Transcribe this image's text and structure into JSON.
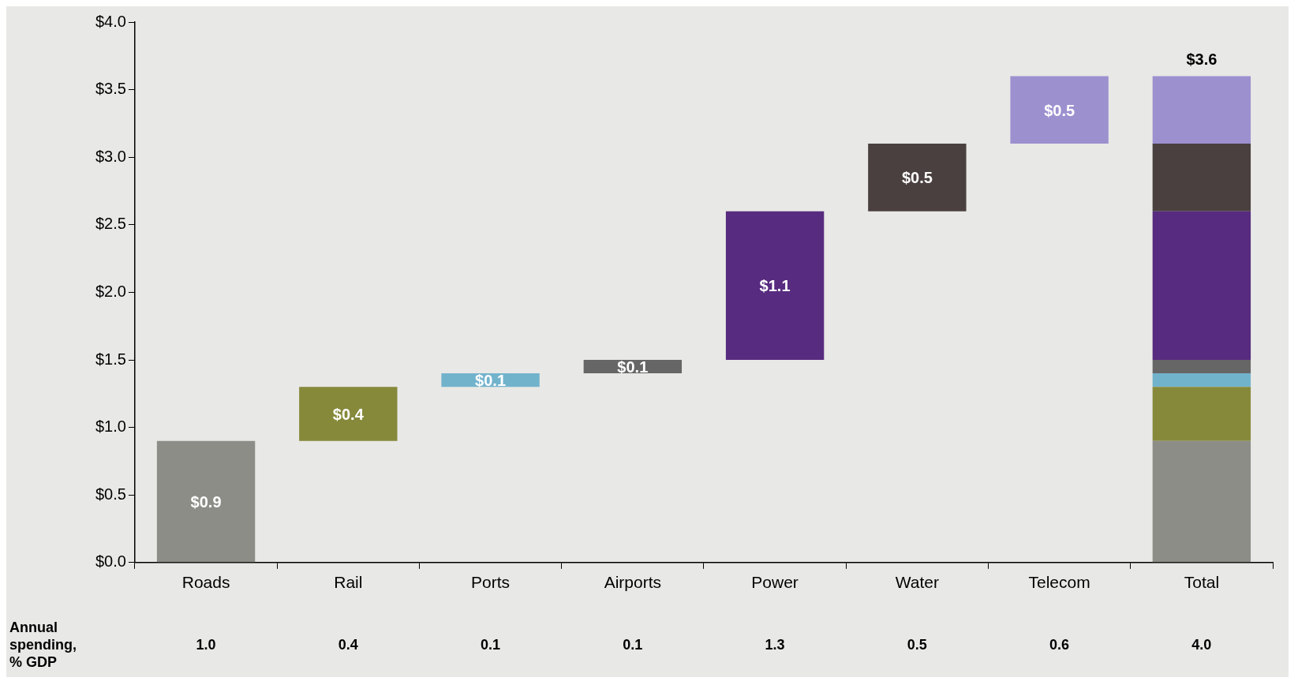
{
  "chart_data": {
    "type": "bar",
    "stacked": true,
    "categories": [
      "Roads",
      "Rail",
      "Ports",
      "Airports",
      "Power",
      "Water",
      "Telecom",
      "Total"
    ],
    "series": [
      {
        "color": "#8c8d87",
        "values": [
          0.9,
          null,
          null,
          null,
          null,
          null,
          null,
          0.9
        ],
        "base": [
          0,
          null,
          null,
          null,
          null,
          null,
          null,
          null
        ],
        "value_labels": [
          "$0.9",
          null,
          null,
          null,
          null,
          null,
          null,
          null
        ]
      },
      {
        "color": "#86893a",
        "values": [
          null,
          0.4,
          null,
          null,
          null,
          null,
          null,
          0.4
        ],
        "base": [
          null,
          0.9,
          null,
          null,
          null,
          null,
          null,
          null
        ],
        "value_labels": [
          null,
          "$0.4",
          null,
          null,
          null,
          null,
          null,
          null
        ]
      },
      {
        "color": "#72b3cc",
        "values": [
          null,
          null,
          0.1,
          null,
          null,
          null,
          null,
          0.1
        ],
        "base": [
          null,
          null,
          1.3,
          null,
          null,
          null,
          null,
          null
        ],
        "value_labels": [
          null,
          null,
          "$0.1",
          null,
          null,
          null,
          null,
          null
        ]
      },
      {
        "color": "#666666",
        "values": [
          null,
          null,
          null,
          0.1,
          null,
          null,
          null,
          0.1
        ],
        "base": [
          null,
          null,
          null,
          1.4,
          null,
          null,
          null,
          null
        ],
        "value_labels": [
          null,
          null,
          null,
          "$0.1",
          null,
          null,
          null,
          null
        ]
      },
      {
        "color": "#572b7f",
        "values": [
          null,
          null,
          null,
          null,
          1.1,
          null,
          null,
          1.1
        ],
        "base": [
          null,
          null,
          null,
          null,
          1.5,
          null,
          null,
          null
        ],
        "value_labels": [
          null,
          null,
          null,
          null,
          "$1.1",
          null,
          null,
          null
        ]
      },
      {
        "color": "#4a403f",
        "values": [
          null,
          null,
          null,
          null,
          null,
          0.5,
          null,
          0.5
        ],
        "base": [
          null,
          null,
          null,
          null,
          null,
          2.6,
          null,
          null
        ],
        "value_labels": [
          null,
          null,
          null,
          null,
          null,
          "$0.5",
          null,
          null
        ]
      },
      {
        "color": "#9d90cf",
        "values": [
          null,
          null,
          null,
          null,
          null,
          null,
          0.5,
          0.5
        ],
        "base": [
          null,
          null,
          null,
          null,
          null,
          null,
          3.1,
          null
        ],
        "value_labels": [
          null,
          null,
          null,
          null,
          null,
          null,
          "$0.5",
          null
        ]
      }
    ],
    "totals": [
      null,
      null,
      null,
      null,
      null,
      null,
      null,
      "$3.6"
    ],
    "ylim": [
      0,
      4
    ],
    "yticks": [
      {
        "value": 0,
        "label": "$0.0"
      },
      {
        "value": 0.5,
        "label": "$0.5"
      },
      {
        "value": 1,
        "label": "$1.0"
      },
      {
        "value": 1.5,
        "label": "$1.5"
      },
      {
        "value": 2,
        "label": "$2.0"
      },
      {
        "value": 2.5,
        "label": "$2.5"
      },
      {
        "value": 3,
        "label": "$3.0"
      },
      {
        "value": 3.5,
        "label": "$3.5"
      },
      {
        "value": 4,
        "label": "$4.0"
      }
    ],
    "grid": false,
    "legend": false,
    "annotations": [
      "Annual spending, % GDP",
      "1.0",
      "0.4",
      "0.1",
      "0.1",
      "1.3",
      "0.5",
      "0.6",
      "4.0"
    ]
  }
}
